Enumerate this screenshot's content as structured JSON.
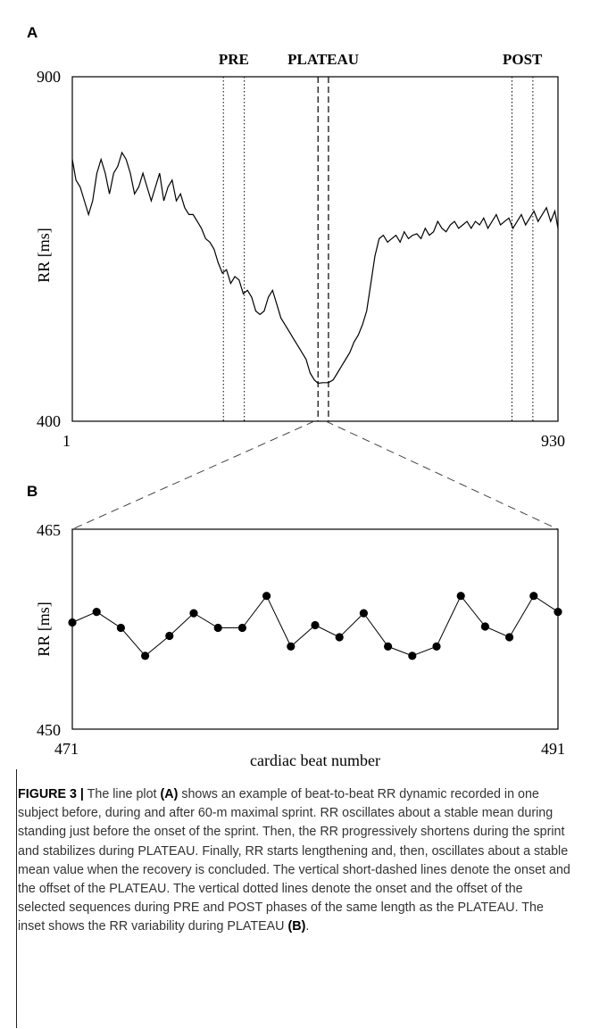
{
  "chart_data": [
    {
      "panel": "A",
      "type": "line",
      "xlabel": "",
      "ylabel": "RR [ms]",
      "xlim": [
        1,
        930
      ],
      "ylim": [
        400,
        900
      ],
      "xticks": [
        "1",
        "930"
      ],
      "yticks": [
        "900",
        "400"
      ],
      "annotations": [
        {
          "label": "PRE",
          "style": "dotted",
          "x": [
            290,
            330
          ]
        },
        {
          "label": "PLATEAU",
          "style": "dashed",
          "x": [
            471,
            491
          ]
        },
        {
          "label": "POST",
          "style": "dotted",
          "x": [
            842,
            882
          ]
        }
      ],
      "series": [
        {
          "points": [
            [
              1,
              780
            ],
            [
              8,
              750
            ],
            [
              16,
              740
            ],
            [
              24,
              720
            ],
            [
              32,
              700
            ],
            [
              40,
              720
            ],
            [
              48,
              760
            ],
            [
              56,
              780
            ],
            [
              64,
              760
            ],
            [
              72,
              730
            ],
            [
              80,
              760
            ],
            [
              88,
              770
            ],
            [
              96,
              790
            ],
            [
              104,
              780
            ],
            [
              112,
              760
            ],
            [
              120,
              730
            ],
            [
              128,
              740
            ],
            [
              136,
              760
            ],
            [
              144,
              740
            ],
            [
              152,
              720
            ],
            [
              160,
              740
            ],
            [
              168,
              760
            ],
            [
              176,
              720
            ],
            [
              184,
              740
            ],
            [
              192,
              750
            ],
            [
              200,
              720
            ],
            [
              208,
              730
            ],
            [
              216,
              710
            ],
            [
              224,
              700
            ],
            [
              232,
              700
            ],
            [
              240,
              690
            ],
            [
              248,
              680
            ],
            [
              256,
              665
            ],
            [
              264,
              660
            ],
            [
              272,
              650
            ],
            [
              280,
              630
            ],
            [
              288,
              615
            ],
            [
              296,
              620
            ],
            [
              304,
              600
            ],
            [
              312,
              610
            ],
            [
              320,
              605
            ],
            [
              328,
              585
            ],
            [
              336,
              590
            ],
            [
              344,
              580
            ],
            [
              352,
              560
            ],
            [
              360,
              555
            ],
            [
              368,
              560
            ],
            [
              376,
              580
            ],
            [
              384,
              590
            ],
            [
              392,
              570
            ],
            [
              400,
              550
            ],
            [
              408,
              540
            ],
            [
              416,
              530
            ],
            [
              424,
              520
            ],
            [
              432,
              510
            ],
            [
              440,
              500
            ],
            [
              448,
              490
            ],
            [
              456,
              470
            ],
            [
              464,
              460
            ],
            [
              471,
              455
            ],
            [
              480,
              456
            ],
            [
              491,
              456
            ],
            [
              500,
              460
            ],
            [
              508,
              470
            ],
            [
              516,
              480
            ],
            [
              524,
              490
            ],
            [
              532,
              500
            ],
            [
              540,
              515
            ],
            [
              548,
              525
            ],
            [
              556,
              540
            ],
            [
              564,
              560
            ],
            [
              572,
              600
            ],
            [
              580,
              640
            ],
            [
              588,
              665
            ],
            [
              596,
              670
            ],
            [
              604,
              660
            ],
            [
              612,
              665
            ],
            [
              620,
              670
            ],
            [
              628,
              660
            ],
            [
              636,
              675
            ],
            [
              644,
              665
            ],
            [
              652,
              670
            ],
            [
              660,
              672
            ],
            [
              668,
              665
            ],
            [
              676,
              680
            ],
            [
              684,
              670
            ],
            [
              692,
              675
            ],
            [
              700,
              690
            ],
            [
              708,
              680
            ],
            [
              716,
              675
            ],
            [
              724,
              685
            ],
            [
              732,
              690
            ],
            [
              740,
              680
            ],
            [
              748,
              685
            ],
            [
              756,
              690
            ],
            [
              764,
              680
            ],
            [
              772,
              690
            ],
            [
              780,
              685
            ],
            [
              788,
              695
            ],
            [
              796,
              680
            ],
            [
              804,
              690
            ],
            [
              812,
              700
            ],
            [
              820,
              685
            ],
            [
              828,
              690
            ],
            [
              836,
              695
            ],
            [
              844,
              680
            ],
            [
              852,
              690
            ],
            [
              860,
              700
            ],
            [
              868,
              685
            ],
            [
              876,
              695
            ],
            [
              884,
              705
            ],
            [
              892,
              690
            ],
            [
              900,
              700
            ],
            [
              908,
              710
            ],
            [
              916,
              690
            ],
            [
              924,
              705
            ],
            [
              930,
              680
            ]
          ]
        }
      ]
    },
    {
      "panel": "B",
      "type": "line",
      "xlabel": "cardiac beat number",
      "ylabel": "RR [ms]",
      "xlim": [
        471,
        491
      ],
      "ylim": [
        450,
        465
      ],
      "xticks": [
        "471",
        "491"
      ],
      "yticks": [
        "465",
        "450"
      ],
      "x": [
        471,
        472,
        473,
        474,
        475,
        476,
        477,
        478,
        479,
        480,
        481,
        482,
        483,
        484,
        485,
        486,
        487,
        488,
        489,
        490,
        491
      ],
      "series": [
        {
          "values": [
            458,
            458.8,
            457.6,
            455.5,
            457,
            458.7,
            457.6,
            457.6,
            460,
            456.2,
            457.8,
            456.9,
            458.7,
            456.2,
            455.5,
            456.2,
            460,
            457.7,
            456.9,
            460,
            458.8
          ]
        }
      ]
    }
  ],
  "caption": {
    "label": "FIGURE 3 |",
    "parts": [
      {
        "text": " The line plot ",
        "bold": false
      },
      {
        "text": "(A)",
        "bold": true
      },
      {
        "text": " shows an example of beat-to-beat RR dynamic recorded in one subject before, during and after 60-m maximal sprint. RR oscillates about a stable mean during standing just before the onset of the sprint. Then, the RR progressively shortens during the sprint and stabilizes during PLATEAU. Finally, RR starts lengthening and, then, oscillates about a stable mean value when the recovery is concluded. The vertical short-dashed lines denote the onset and the offset of the PLATEAU. The vertical dotted lines denote the onset and the offset of the selected sequences during PRE and POST phases of the same length as the PLATEAU. The inset shows the RR variability during PLATEAU ",
        "bold": false
      },
      {
        "text": "(B)",
        "bold": true
      },
      {
        "text": ".",
        "bold": false
      }
    ]
  }
}
